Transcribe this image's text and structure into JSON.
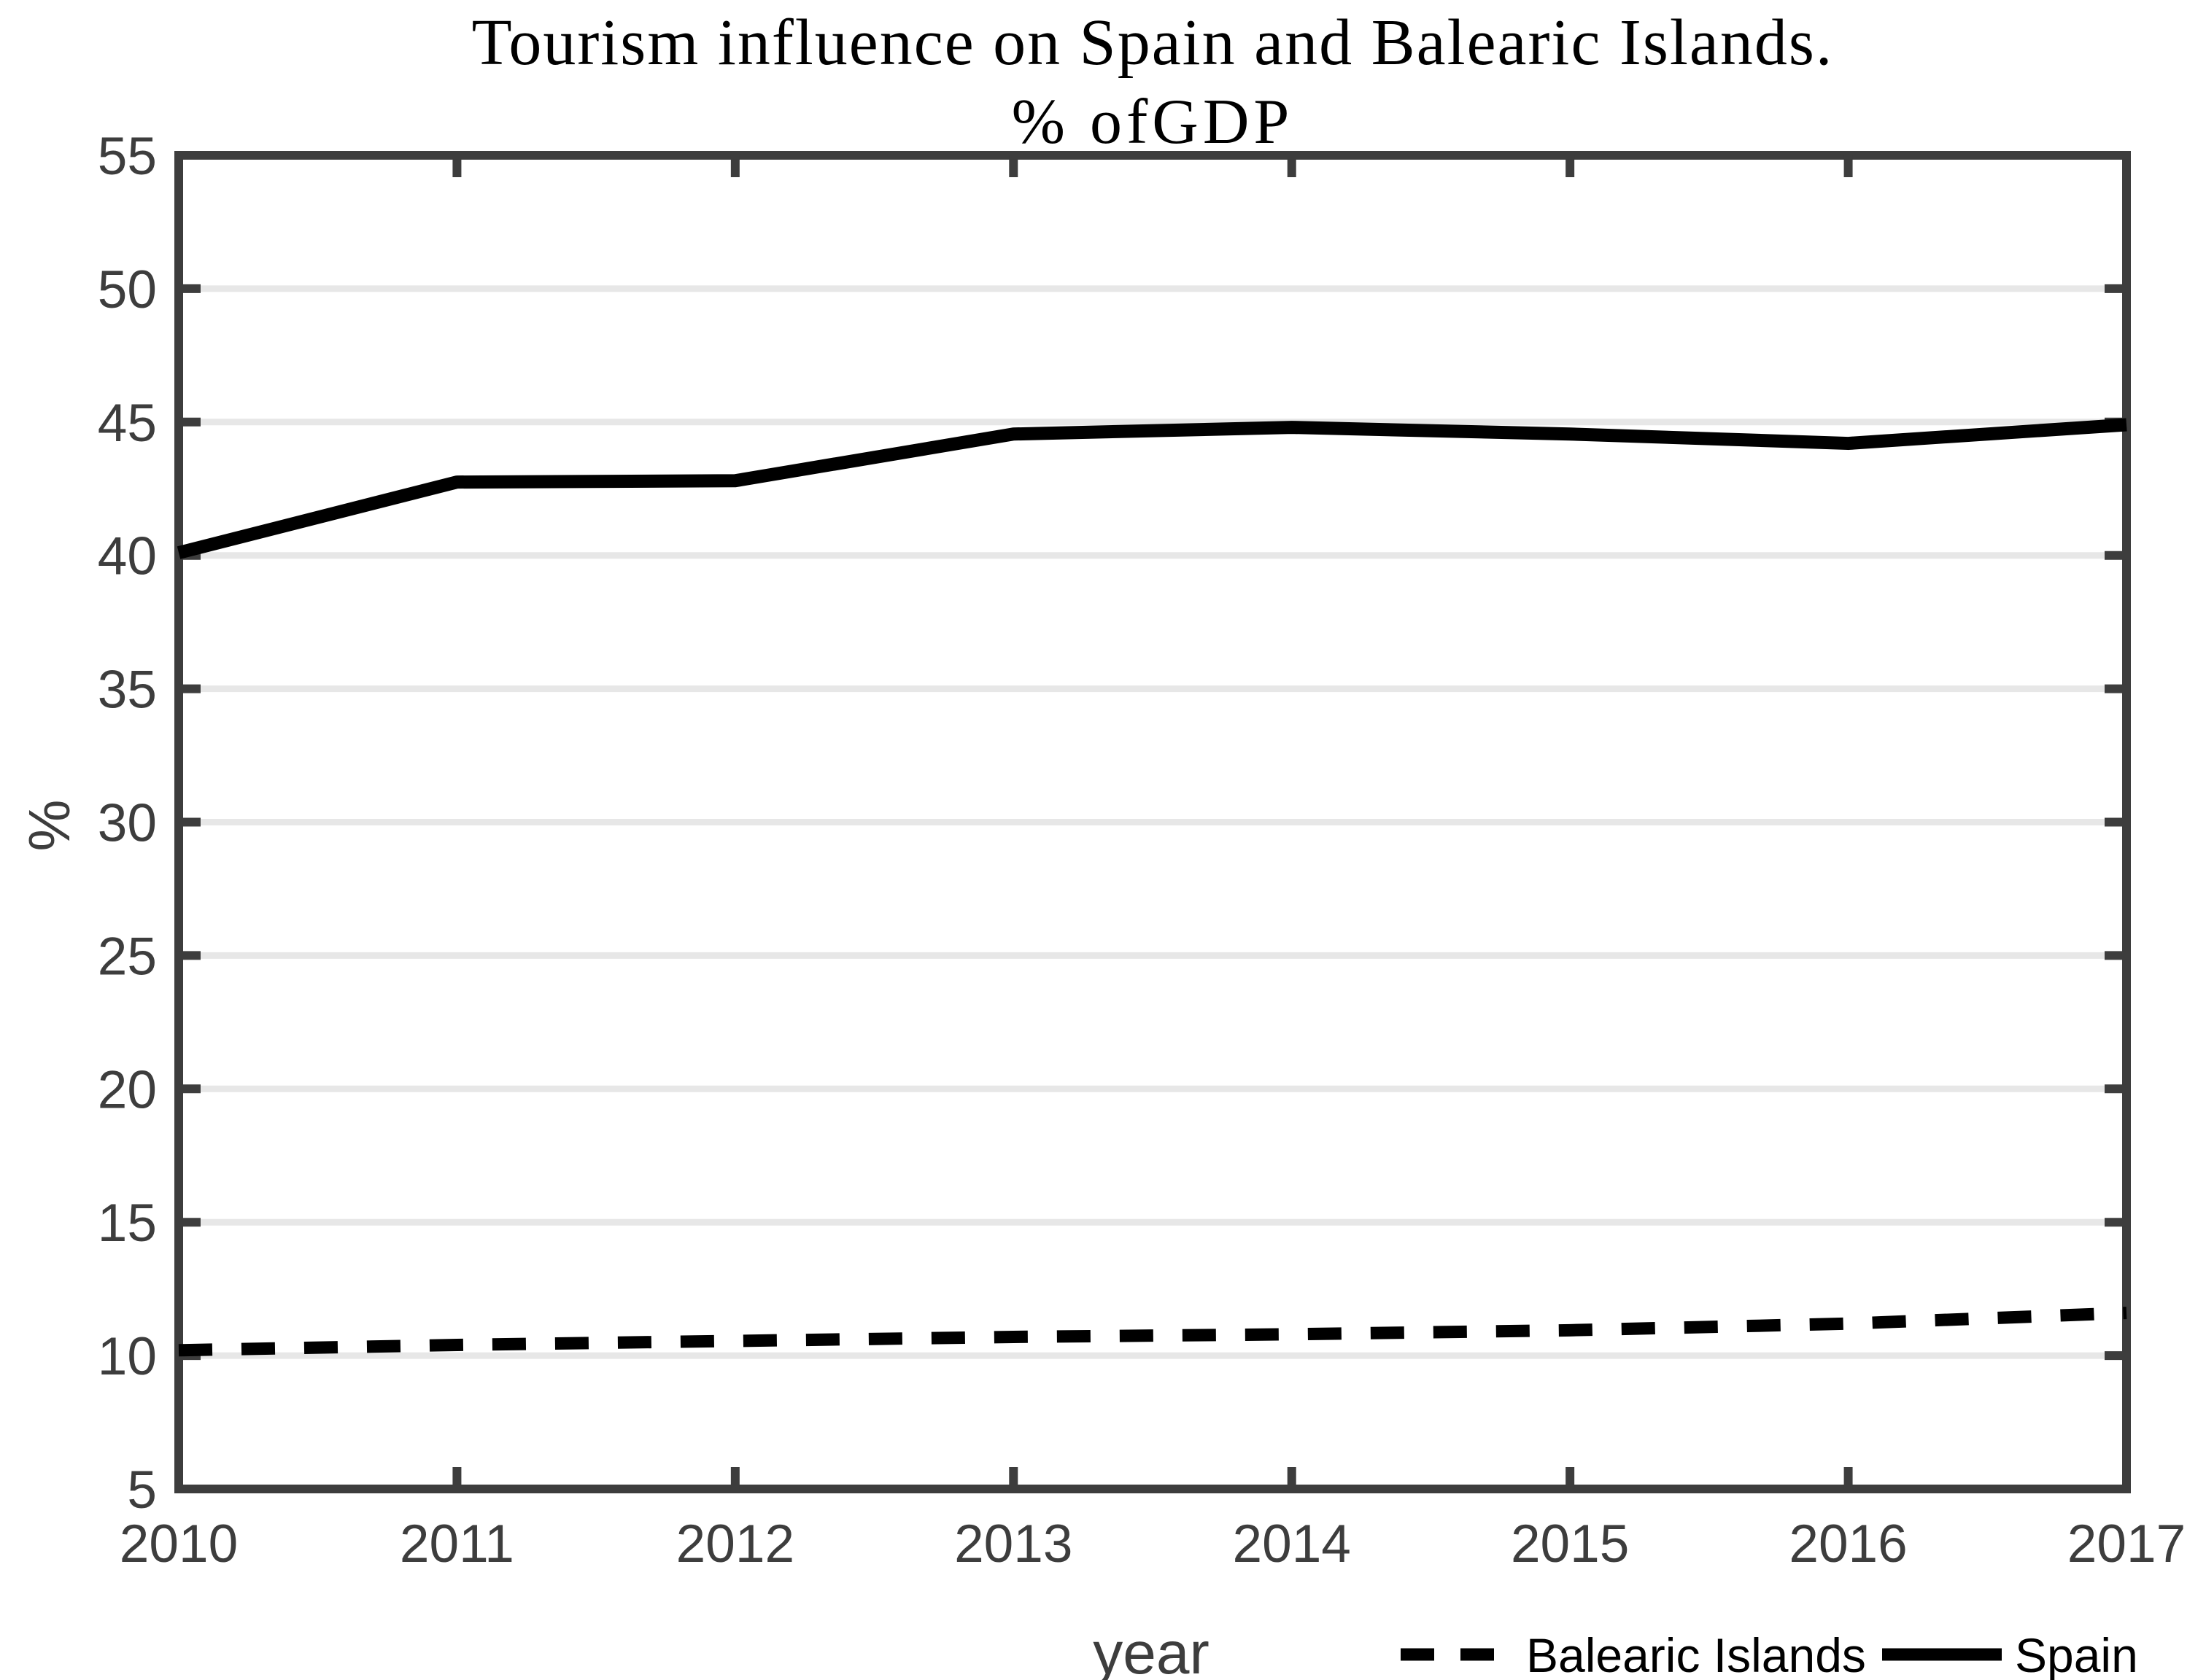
{
  "figure": {
    "title": "Tourism influence on Spain and Balearic Islands.",
    "subtitle": "% ofGDP"
  },
  "chart_data": {
    "type": "line",
    "title": "Tourism influence on Spain and Balearic Islands.",
    "subtitle": "% ofGDP",
    "xlabel": "year",
    "ylabel": "%",
    "x": [
      2010,
      2011,
      2012,
      2013,
      2014,
      2015,
      2016,
      2017
    ],
    "xticks": [
      2010,
      2011,
      2012,
      2013,
      2014,
      2015,
      2016,
      2017
    ],
    "yticks": [
      5,
      10,
      15,
      20,
      25,
      30,
      35,
      40,
      45,
      50,
      55
    ],
    "xlim": [
      2010,
      2017
    ],
    "ylim": [
      5,
      55
    ],
    "grid": "horizontal",
    "series": [
      {
        "name": "Balearic Islands",
        "line_style": "dashed",
        "color": "#000000",
        "values": [
          10.2,
          10.4,
          10.55,
          10.7,
          10.8,
          10.95,
          11.2,
          11.6
        ]
      },
      {
        "name": "Spain",
        "line_style": "solid",
        "color": "#000000",
        "values": [
          40.1,
          42.75,
          42.8,
          44.55,
          44.8,
          44.55,
          44.2,
          44.9
        ]
      }
    ],
    "legend": {
      "position": "bottom-right",
      "entries": [
        "Balearic Islands",
        "Spain"
      ]
    },
    "colors": {
      "axis": "#3d3d3d",
      "grid": "#e7e7e7",
      "tick_labels": "#3d3d3d",
      "series": "#000000"
    }
  }
}
